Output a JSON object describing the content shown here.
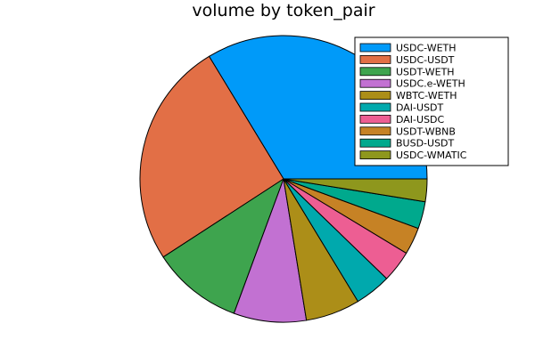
{
  "chart_data": {
    "type": "pie",
    "title": "volume by token_pair",
    "legend_placement": "top-right",
    "start_angle_deg": 0,
    "direction": "counterclockwise",
    "slices": [
      {
        "label": "USDC-WETH",
        "value": 0.33,
        "color": "#009af9"
      },
      {
        "label": "USDC-USDT",
        "value": 0.25,
        "color": "#e26f46"
      },
      {
        "label": "USDT-WETH",
        "value": 0.1,
        "color": "#3ea44e"
      },
      {
        "label": "USDC.e-WETH",
        "value": 0.08,
        "color": "#c271d2"
      },
      {
        "label": "WBTC-WETH",
        "value": 0.06,
        "color": "#ac8e18"
      },
      {
        "label": "DAI-USDT",
        "value": 0.04,
        "color": "#00a9ad"
      },
      {
        "label": "DAI-USDC",
        "value": 0.035,
        "color": "#ed5e93"
      },
      {
        "label": "USDT-WBNB",
        "value": 0.03,
        "color": "#c68225"
      },
      {
        "label": "BUSD-USDT",
        "value": 0.03,
        "color": "#00a98d"
      },
      {
        "label": "USDC-WMATIC",
        "value": 0.025,
        "color": "#8e971d"
      }
    ]
  }
}
